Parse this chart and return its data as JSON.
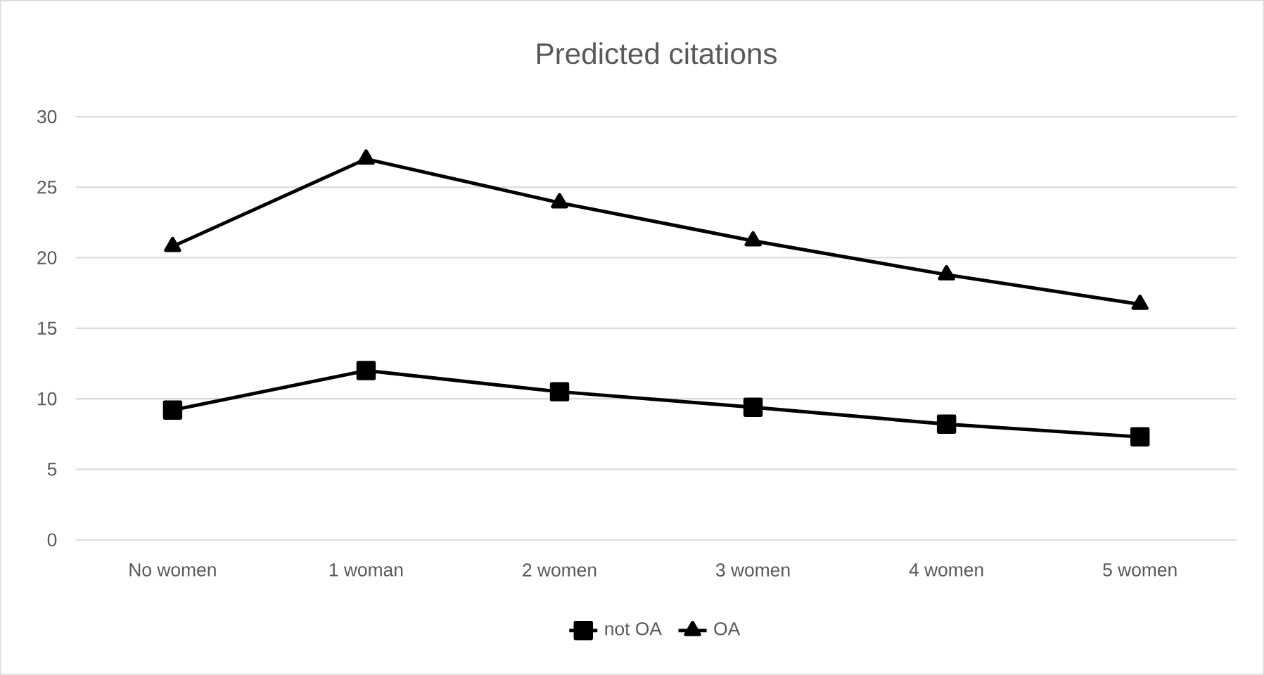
{
  "chart_data": {
    "type": "line",
    "title": "Predicted citations",
    "categories": [
      "No women",
      "1 woman",
      "2 women",
      "3 women",
      "4 women",
      "5 women"
    ],
    "series": [
      {
        "name": "not OA",
        "color": "#000000",
        "marker": "square",
        "values": [
          9.2,
          12.0,
          10.5,
          9.4,
          8.2,
          7.3
        ]
      },
      {
        "name": "OA",
        "color": "#000000",
        "marker": "triangle",
        "values": [
          20.8,
          27.0,
          23.9,
          21.2,
          18.8,
          16.7
        ]
      }
    ],
    "ylim": [
      0,
      30
    ],
    "yticks": [
      0,
      5,
      10,
      15,
      20,
      25,
      30
    ],
    "grid": "y",
    "legend": "bottom",
    "line_style": "solid"
  }
}
